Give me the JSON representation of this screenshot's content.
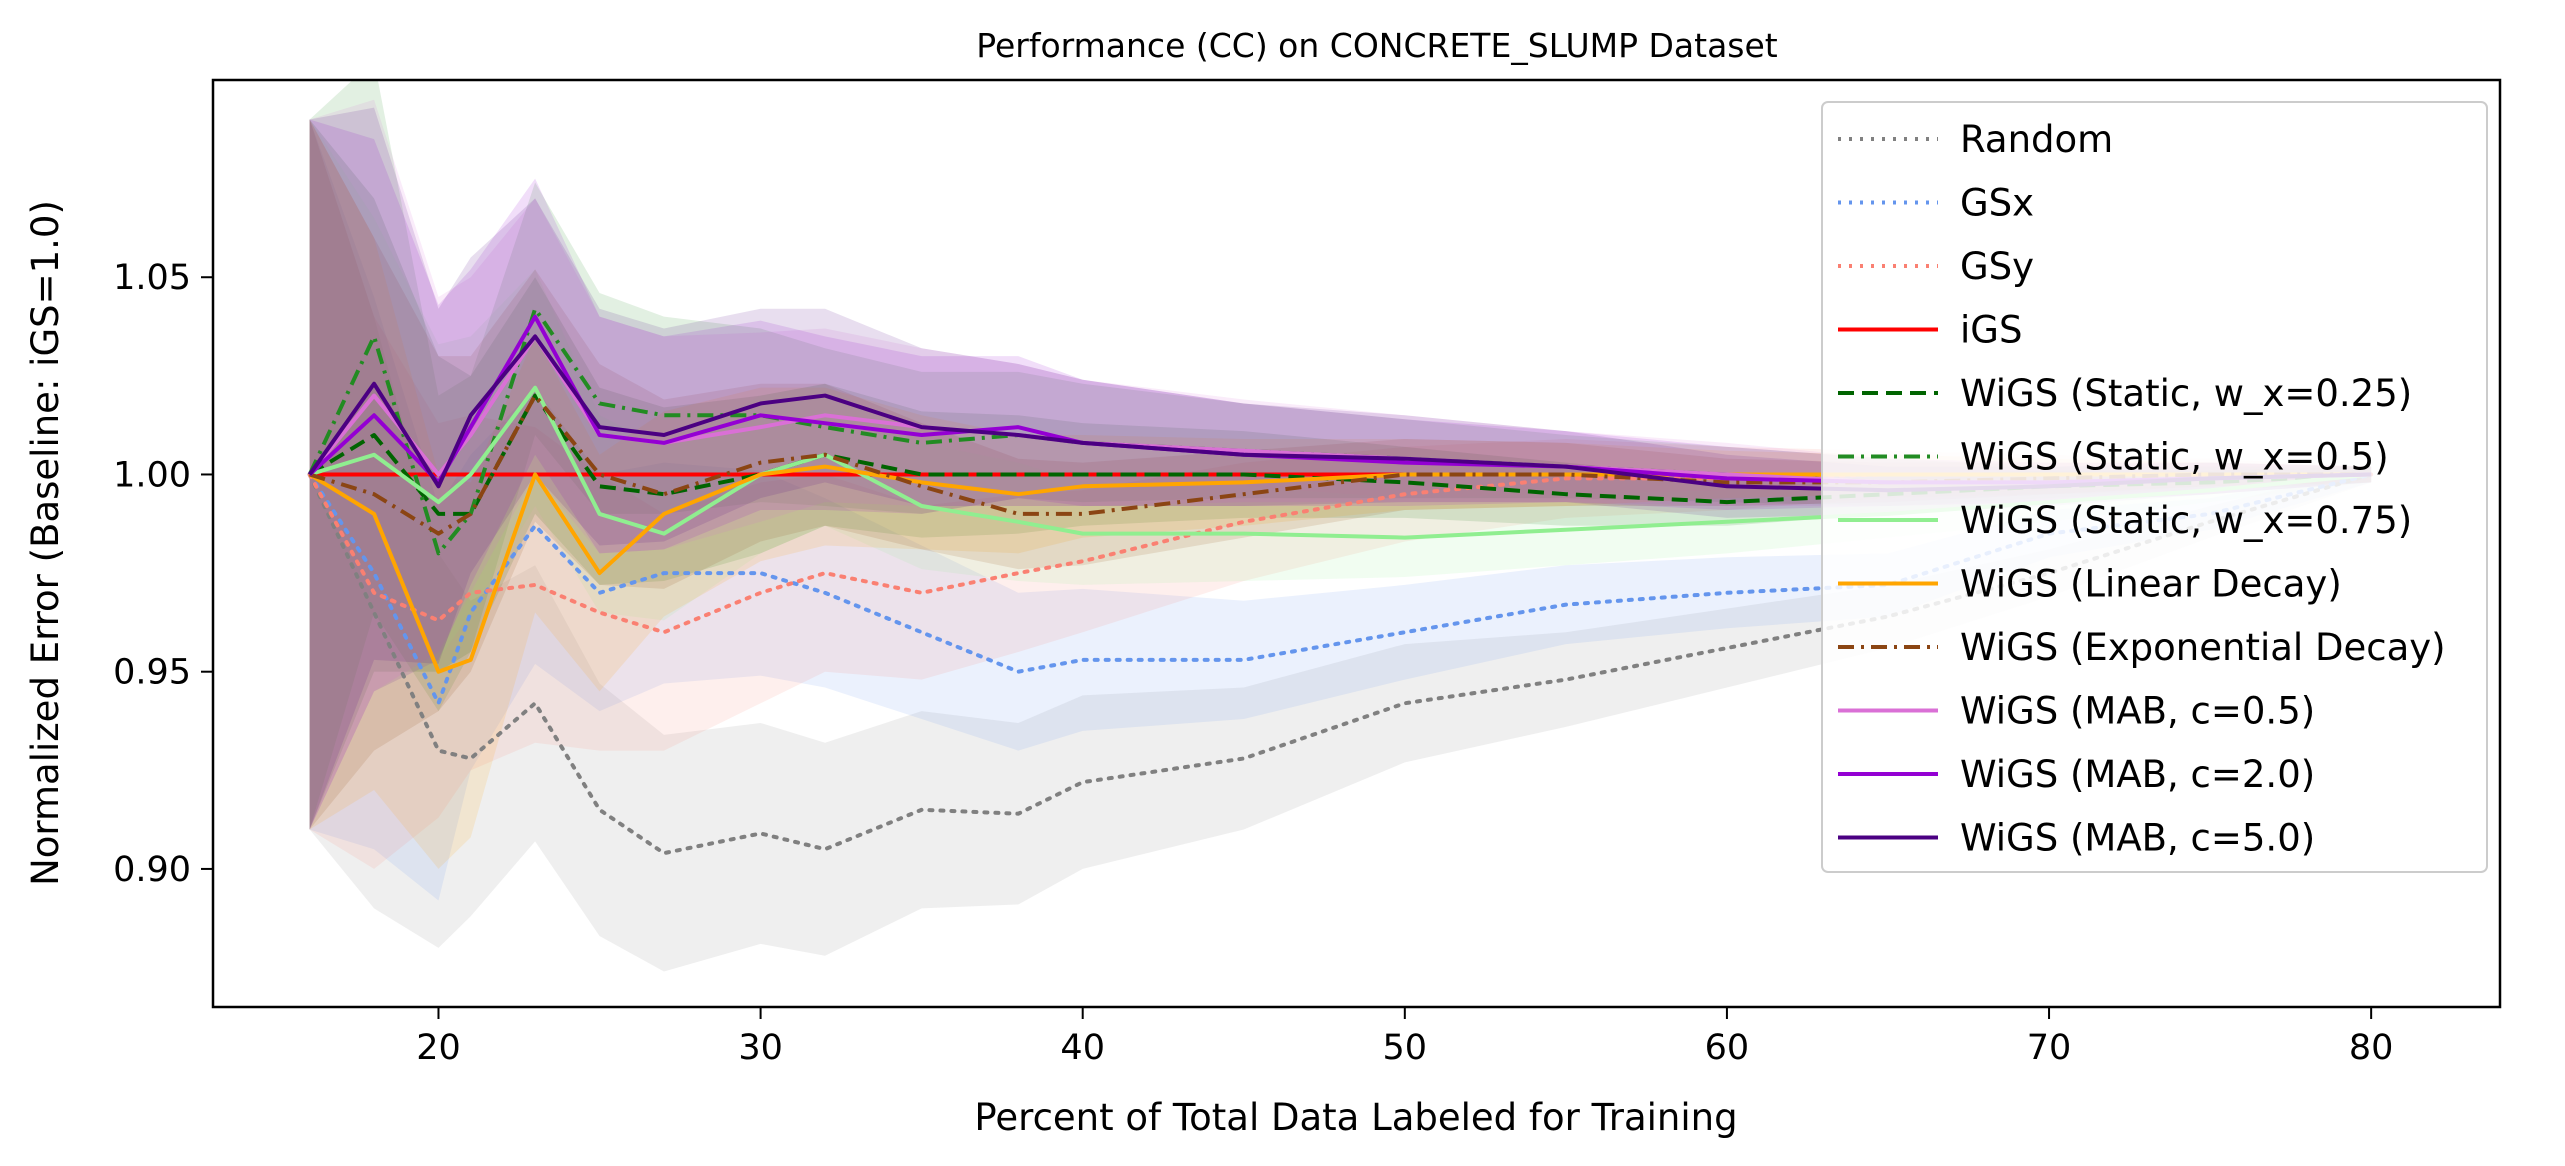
{
  "chart_data": {
    "type": "line",
    "title": "Performance (CC) on CONCRETE_SLUMP Dataset",
    "xlabel": "Percent of Total Data Labeled for Training",
    "ylabel": "Normalized Error (Baseline: iGS=1.0)",
    "xlim": [
      13,
      84
    ],
    "ylim": [
      0.865,
      1.1
    ],
    "xticks": [
      20,
      30,
      40,
      50,
      60,
      70,
      80
    ],
    "yticks": [
      0.9,
      0.95,
      1.0,
      1.05
    ],
    "xtick_labels": [
      "20",
      "30",
      "40",
      "50",
      "60",
      "70",
      "80"
    ],
    "ytick_labels": [
      "0.90",
      "0.95",
      "1.00",
      "1.05"
    ],
    "grid": false,
    "legend_position": "top-right",
    "x": [
      16,
      18,
      20,
      21,
      23,
      25,
      27,
      30,
      32,
      35,
      38,
      40,
      45,
      50,
      55,
      60,
      65,
      70,
      75,
      80
    ],
    "series": [
      {
        "name": "Random",
        "color": "#808080",
        "dash": "dotted",
        "values": [
          1.0,
          0.965,
          0.93,
          0.928,
          0.942,
          0.915,
          0.904,
          0.909,
          0.905,
          0.915,
          0.914,
          0.922,
          0.928,
          0.942,
          0.948,
          0.956,
          0.964,
          0.975,
          0.988,
          1.0
        ],
        "band": [
          0.09,
          0.075,
          0.05,
          0.04,
          0.035,
          0.032,
          0.03,
          0.028,
          0.027,
          0.025,
          0.023,
          0.022,
          0.018,
          0.015,
          0.012,
          0.01,
          0.008,
          0.006,
          0.004,
          0.002
        ]
      },
      {
        "name": "GSx",
        "color": "#6495ed",
        "dash": "dotted",
        "values": [
          1.0,
          0.975,
          0.942,
          0.965,
          0.987,
          0.97,
          0.975,
          0.975,
          0.97,
          0.96,
          0.95,
          0.953,
          0.953,
          0.96,
          0.967,
          0.97,
          0.972,
          0.985,
          0.99,
          1.0
        ],
        "band": [
          0.09,
          0.07,
          0.05,
          0.04,
          0.035,
          0.03,
          0.028,
          0.026,
          0.024,
          0.022,
          0.02,
          0.018,
          0.015,
          0.012,
          0.01,
          0.009,
          0.008,
          0.006,
          0.004,
          0.002
        ]
      },
      {
        "name": "GSy",
        "color": "#fa8072",
        "dash": "dotted",
        "values": [
          1.0,
          0.97,
          0.963,
          0.97,
          0.972,
          0.965,
          0.96,
          0.97,
          0.975,
          0.97,
          0.975,
          0.978,
          0.988,
          0.995,
          0.999,
          0.999,
          1.0,
          1.0,
          1.0,
          1.0
        ],
        "band": [
          0.09,
          0.07,
          0.05,
          0.045,
          0.04,
          0.035,
          0.03,
          0.028,
          0.025,
          0.022,
          0.02,
          0.018,
          0.015,
          0.012,
          0.01,
          0.008,
          0.006,
          0.005,
          0.004,
          0.002
        ]
      },
      {
        "name": "iGS",
        "color": "#ff0000",
        "dash": "solid",
        "values": [
          1.0,
          1.0,
          1.0,
          1.0,
          1.0,
          1.0,
          1.0,
          1.0,
          1.0,
          1.0,
          1.0,
          1.0,
          1.0,
          1.0,
          1.0,
          1.0,
          1.0,
          1.0,
          1.0,
          1.0
        ],
        "band": null
      },
      {
        "name": "WiGS (Static, w_x=0.25)",
        "color": "#006400",
        "dash": "dashed",
        "values": [
          1.0,
          1.01,
          0.99,
          0.99,
          1.02,
          0.997,
          0.995,
          1.0,
          1.005,
          1.0,
          1.0,
          1.0,
          1.0,
          0.998,
          0.995,
          0.993,
          0.995,
          0.997,
          0.998,
          1.0
        ],
        "band": [
          0.09,
          0.06,
          0.04,
          0.035,
          0.03,
          0.025,
          0.022,
          0.02,
          0.018,
          0.016,
          0.015,
          0.013,
          0.011,
          0.009,
          0.008,
          0.006,
          0.005,
          0.004,
          0.003,
          0.002
        ]
      },
      {
        "name": "WiGS (Static, w_x=0.5)",
        "color": "#228b22",
        "dash": "dashdot",
        "values": [
          1.0,
          1.035,
          0.98,
          0.99,
          1.042,
          1.018,
          1.015,
          1.015,
          1.012,
          1.008,
          1.01,
          1.008,
          1.006,
          1.004,
          1.002,
          1.0,
          0.998,
          0.998,
          0.999,
          1.0
        ],
        "band": [
          0.09,
          0.07,
          0.04,
          0.035,
          0.032,
          0.028,
          0.025,
          0.022,
          0.02,
          0.018,
          0.016,
          0.015,
          0.012,
          0.01,
          0.008,
          0.007,
          0.006,
          0.004,
          0.003,
          0.002
        ]
      },
      {
        "name": "WiGS (Static, w_x=0.75)",
        "color": "#90ee90",
        "dash": "solid",
        "values": [
          1.0,
          1.005,
          0.993,
          1.0,
          1.022,
          0.99,
          0.985,
          1.0,
          1.005,
          0.992,
          0.988,
          0.985,
          0.985,
          0.984,
          0.986,
          0.988,
          0.99,
          0.993,
          0.996,
          1.0
        ],
        "band": [
          0.09,
          0.06,
          0.04,
          0.035,
          0.03,
          0.025,
          0.022,
          0.02,
          0.018,
          0.016,
          0.015,
          0.013,
          0.012,
          0.01,
          0.009,
          0.008,
          0.006,
          0.005,
          0.003,
          0.002
        ]
      },
      {
        "name": "WiGS (Linear Decay)",
        "color": "#ffa500",
        "dash": "solid",
        "values": [
          1.0,
          0.99,
          0.95,
          0.953,
          1.0,
          0.975,
          0.99,
          1.0,
          1.002,
          0.998,
          0.995,
          0.997,
          0.998,
          1.0,
          1.0,
          1.0,
          1.0,
          1.0,
          1.0,
          1.0
        ],
        "band": [
          0.09,
          0.07,
          0.05,
          0.045,
          0.035,
          0.03,
          0.026,
          0.022,
          0.02,
          0.017,
          0.015,
          0.013,
          0.011,
          0.009,
          0.008,
          0.006,
          0.005,
          0.004,
          0.003,
          0.002
        ]
      },
      {
        "name": "WiGS (Exponential Decay)",
        "color": "#8b4513",
        "dash": "dashdot",
        "values": [
          1.0,
          0.995,
          0.985,
          0.99,
          1.02,
          1.0,
          0.995,
          1.003,
          1.005,
          0.997,
          0.99,
          0.99,
          0.995,
          1.0,
          1.0,
          0.998,
          0.998,
          0.999,
          1.0,
          1.0
        ],
        "band": [
          0.09,
          0.065,
          0.045,
          0.04,
          0.032,
          0.028,
          0.024,
          0.02,
          0.018,
          0.016,
          0.014,
          0.013,
          0.011,
          0.009,
          0.008,
          0.006,
          0.005,
          0.004,
          0.003,
          0.002
        ]
      },
      {
        "name": "WiGS (MAB, c=0.5)",
        "color": "#da70d6",
        "dash": "solid",
        "values": [
          1.0,
          1.02,
          1.0,
          1.01,
          1.035,
          1.01,
          1.008,
          1.012,
          1.015,
          1.012,
          1.01,
          1.008,
          1.006,
          1.004,
          1.002,
          1.0,
          0.998,
          0.998,
          0.999,
          1.0
        ],
        "band": [
          0.09,
          0.075,
          0.045,
          0.04,
          0.035,
          0.03,
          0.027,
          0.024,
          0.022,
          0.02,
          0.018,
          0.016,
          0.013,
          0.011,
          0.009,
          0.008,
          0.006,
          0.005,
          0.004,
          0.002
        ]
      },
      {
        "name": "WiGS (MAB, c=2.0)",
        "color": "#9400d3",
        "dash": "solid",
        "values": [
          1.0,
          1.015,
          0.998,
          1.012,
          1.04,
          1.01,
          1.008,
          1.015,
          1.013,
          1.01,
          1.012,
          1.008,
          1.005,
          1.003,
          1.002,
          0.999,
          0.998,
          0.998,
          0.999,
          1.0
        ],
        "band": [
          0.09,
          0.07,
          0.045,
          0.04,
          0.035,
          0.03,
          0.027,
          0.024,
          0.022,
          0.02,
          0.018,
          0.016,
          0.013,
          0.011,
          0.009,
          0.008,
          0.006,
          0.005,
          0.004,
          0.002
        ]
      },
      {
        "name": "WiGS (MAB, c=5.0)",
        "color": "#4b0082",
        "dash": "solid",
        "values": [
          1.0,
          1.023,
          0.997,
          1.015,
          1.035,
          1.012,
          1.01,
          1.018,
          1.02,
          1.012,
          1.01,
          1.008,
          1.005,
          1.004,
          1.002,
          0.997,
          0.996,
          0.997,
          0.999,
          1.0
        ],
        "band": [
          0.09,
          0.07,
          0.045,
          0.04,
          0.035,
          0.03,
          0.027,
          0.024,
          0.022,
          0.02,
          0.018,
          0.016,
          0.013,
          0.011,
          0.009,
          0.008,
          0.006,
          0.005,
          0.004,
          0.002
        ]
      }
    ]
  }
}
